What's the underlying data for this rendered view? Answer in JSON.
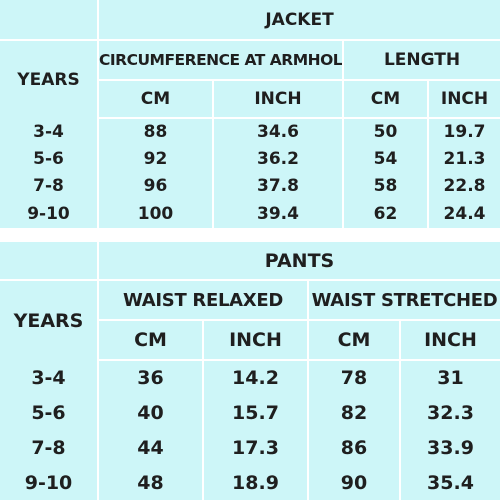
{
  "jacket": {
    "title": "JACKET",
    "years_label": "YEARS",
    "groups": [
      "CIRCUMFERENCE AT ARMHOLE",
      "LENGTH"
    ],
    "units": [
      "CM",
      "INCH",
      "CM",
      "INCH"
    ],
    "rows": [
      {
        "years": "3-4",
        "values": [
          "88",
          "34.6",
          "50",
          "19.7"
        ]
      },
      {
        "years": "5-6",
        "values": [
          "92",
          "36.2",
          "54",
          "21.3"
        ]
      },
      {
        "years": "7-8",
        "values": [
          "96",
          "37.8",
          "58",
          "22.8"
        ]
      },
      {
        "years": "9-10",
        "values": [
          "100",
          "39.4",
          "62",
          "24.4"
        ]
      }
    ]
  },
  "pants": {
    "title": "PANTS",
    "years_label": "YEARS",
    "groups": [
      "WAIST RELAXED",
      "WAIST STRETCHED"
    ],
    "units": [
      "CM",
      "INCH",
      "CM",
      "INCH"
    ],
    "rows": [
      {
        "years": "3-4",
        "values": [
          "36",
          "14.2",
          "78",
          "31"
        ]
      },
      {
        "years": "5-6",
        "values": [
          "40",
          "15.7",
          "82",
          "32.3"
        ]
      },
      {
        "years": "7-8",
        "values": [
          "44",
          "17.3",
          "86",
          "33.9"
        ]
      },
      {
        "years": "9-10",
        "values": [
          "48",
          "18.9",
          "90",
          "35.4"
        ]
      }
    ]
  },
  "colors": {
    "panel_background": "#cdf6f8",
    "divider": "#ffffff",
    "text": "#1f1f1f"
  }
}
